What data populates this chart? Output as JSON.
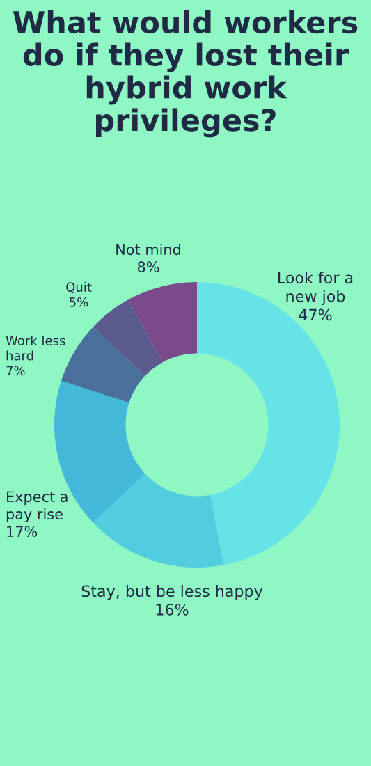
{
  "chart_data": {
    "type": "donut",
    "title": "What would workers do if they lost their hybrid work privileges?",
    "categories": [
      "Look for a\nnew job",
      "Stay, but be less happy",
      "Expect a\npay rise",
      "Work less\nhard",
      "Quit",
      "Not mind"
    ],
    "values": [
      47,
      16,
      17,
      7,
      5,
      8
    ],
    "value_labels": [
      "47%",
      "16%",
      "17%",
      "7%",
      "5%",
      "8%"
    ],
    "colors": [
      "#66e3e6",
      "#52cde0",
      "#44b8d8",
      "#4a6f9a",
      "#5b5a8e",
      "#7a4a8a"
    ],
    "legend": false
  }
}
